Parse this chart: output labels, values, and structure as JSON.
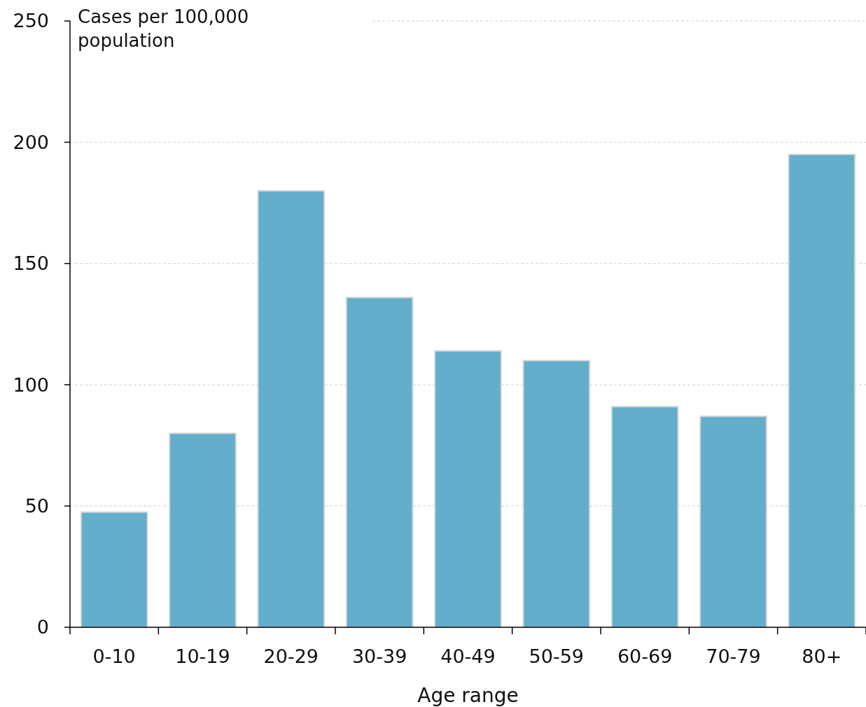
{
  "chart_data": {
    "type": "bar",
    "xlabel": "Age range",
    "ylabel": "Cases per 100,000 population",
    "categories": [
      "0-10",
      "10-19",
      "20-29",
      "30-39",
      "40-49",
      "50-59",
      "60-69",
      "70-79",
      "80+"
    ],
    "values": [
      47.5,
      80,
      180,
      136,
      114,
      110,
      91,
      87,
      195
    ],
    "color": "#63aecb",
    "ylim": [
      0,
      250
    ],
    "yticks": [
      0,
      50,
      100,
      150,
      200,
      250
    ],
    "grid": "y"
  }
}
